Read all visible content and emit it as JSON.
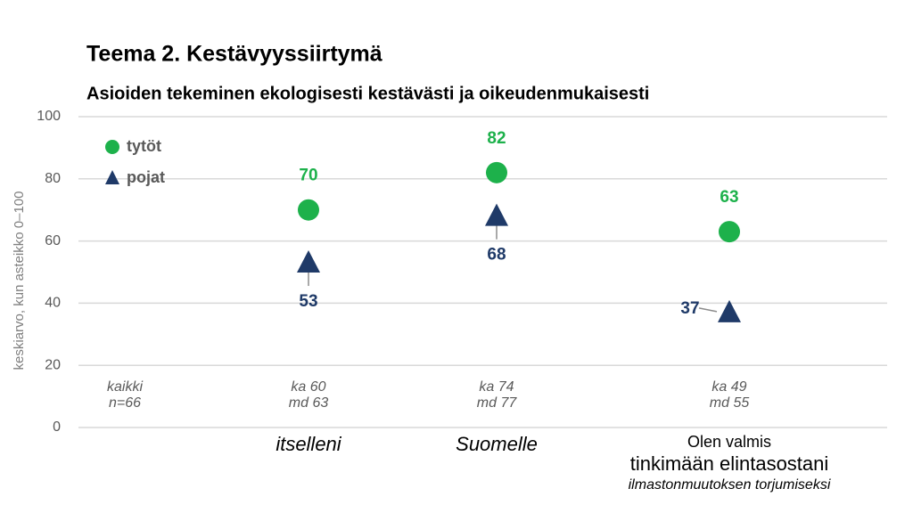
{
  "chart_data": {
    "type": "dot",
    "title": "Teema 2. Kestävyyssiirtymä",
    "subtitle": "Asioiden tekeminen ekologisesti kestävästi ja oikeudenmukaisesti",
    "ylabel": "keskiarvo, kun asteikko 0–100",
    "categories": [
      null,
      "itselleni",
      "Suomelle",
      [
        "Olen valmis",
        "tinkimään elintasostani",
        "ilmastonmuutoksen torjumiseksi"
      ]
    ],
    "annotations": [
      [
        "kaikki",
        "n=66"
      ],
      [
        "ka 60",
        "md 63"
      ],
      [
        "ka 74",
        "md 77"
      ],
      [
        "ka 49",
        "md 55"
      ]
    ],
    "series": [
      {
        "name": "tytöt",
        "color": "#1db14b",
        "marker": "circle",
        "values": [
          null,
          70,
          82,
          63
        ]
      },
      {
        "name": "pojat",
        "color": "#1f3a68",
        "marker": "triangle",
        "values": [
          null,
          53,
          68,
          37
        ]
      }
    ],
    "ylim": [
      0,
      100
    ],
    "yticks": [
      0,
      20,
      40,
      60,
      80,
      100
    ],
    "grid": true,
    "legend": "upper left"
  }
}
